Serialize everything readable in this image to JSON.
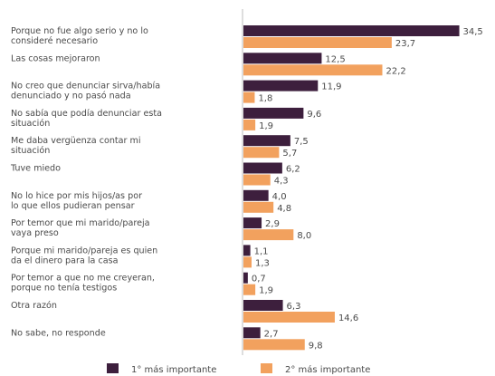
{
  "chart_data": {
    "type": "bar",
    "orientation": "horizontal",
    "categories": [
      [
        "Porque no fue algo serio y no lo",
        "consideré necesario"
      ],
      [
        "Las cosas mejoraron"
      ],
      [
        "No creo que denunciar sirva/había",
        "denunciado y no pasó nada"
      ],
      [
        "No sabía que podía denunciar esta",
        "situación"
      ],
      [
        "Me daba vergüenza contar mi",
        "situación"
      ],
      [
        "Tuve miedo"
      ],
      [
        "No lo hice por mis hijos/as por",
        "lo que ellos pudieran pensar"
      ],
      [
        "Por temor que mi marido/pareja",
        "vaya preso"
      ],
      [
        "Porque mi marido/pareja es quien",
        "da el dinero para la casa"
      ],
      [
        "Por temor a que no me creyeran,",
        "porque no tenía testigos"
      ],
      [
        "Otra razón"
      ],
      [
        "No sabe, no responde"
      ]
    ],
    "series": [
      {
        "name": "1° más importante",
        "color": "#3d1f3d",
        "values": [
          34.5,
          12.5,
          11.9,
          9.6,
          7.5,
          6.2,
          4.0,
          2.9,
          1.1,
          0.7,
          6.3,
          2.7
        ],
        "labels": [
          "34,5",
          "12,5",
          "11,9",
          "9,6",
          "7,5",
          "6,2",
          "4,0",
          "2,9",
          "1,1",
          "0,7",
          "6,3",
          "2,7"
        ]
      },
      {
        "name": "2° más importante",
        "color": "#f2a15e",
        "values": [
          23.7,
          22.2,
          1.8,
          1.9,
          5.7,
          4.3,
          4.8,
          8.0,
          1.3,
          1.9,
          14.6,
          9.8
        ],
        "labels": [
          "23,7",
          "22,2",
          "1,8",
          "1,9",
          "5,7",
          "4,3",
          "4,8",
          "8,0",
          "1,3",
          "1,9",
          "14,6",
          "9,8"
        ]
      }
    ],
    "xlim": [
      0,
      35
    ],
    "legend_position": "bottom"
  }
}
